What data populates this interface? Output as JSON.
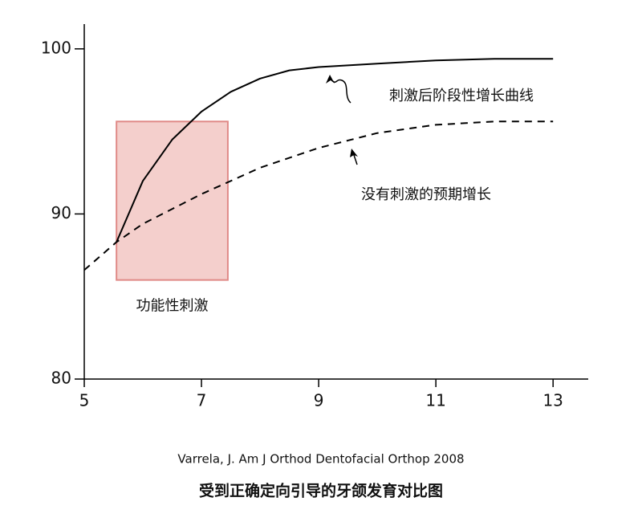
{
  "chart_data": {
    "type": "line",
    "title": "受到正确定向引导的牙颌发育对比图",
    "subtitle": "Varrela, J. Am J Orthod Dentofacial Orthop 2008",
    "xlim": [
      5,
      13.6
    ],
    "xticks": [
      5,
      7,
      9,
      11,
      13
    ],
    "ylim": [
      80,
      101.5
    ],
    "yticks": [
      80,
      90,
      100
    ],
    "grid": false,
    "series": [
      {
        "name": "刺激后阶段性增长曲线",
        "color": "#000000",
        "style": "solid",
        "x": [
          5.55,
          6,
          6.5,
          7,
          7.5,
          8,
          8.5,
          9,
          10,
          11,
          12,
          13
        ],
        "values": [
          88.3,
          92,
          94.5,
          96.2,
          97.4,
          98.2,
          98.7,
          98.9,
          99.1,
          99.3,
          99.4,
          99.4
        ]
      },
      {
        "name": "没有刺激的预期增长",
        "color": "#000000",
        "style": "dashed",
        "x": [
          5,
          5.55,
          6,
          7,
          8,
          9,
          10,
          11,
          12,
          13
        ],
        "values": [
          86.6,
          88.3,
          89.4,
          91.2,
          92.8,
          94.0,
          94.9,
          95.4,
          95.6,
          95.6
        ]
      }
    ],
    "highlight": {
      "label": "功能性刺激",
      "x": [
        5.55,
        7.45
      ],
      "y": [
        86,
        95.6
      ],
      "color": "#f4cfcc"
    }
  }
}
